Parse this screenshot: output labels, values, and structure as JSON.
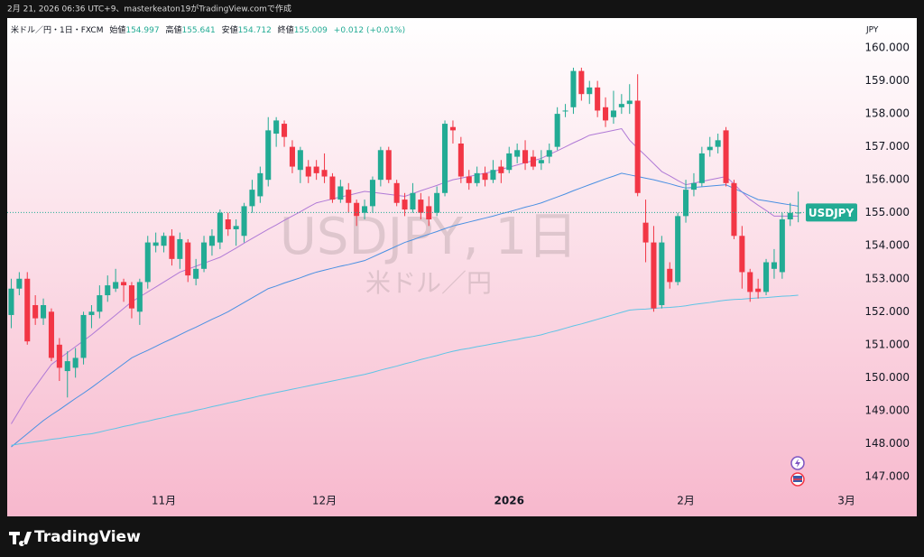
{
  "caption": "2月 21, 2026 06:36 UTC+9、masterkeaton19がTradingView.comで作成",
  "brand": "TradingView",
  "chart_data": {
    "type": "candlestick",
    "title": "米ドル／円・1日・FXCM",
    "legend_labels": {
      "open": "始値",
      "high": "高値",
      "low": "安値",
      "close": "終値"
    },
    "change": "+0.012 (+0.01%)",
    "watermark": "USDJPY, 1日",
    "watermark_subtitle": "米ドル／円",
    "price_tag": "USDJPY",
    "currency": "JPY",
    "up_color": "#22ab94",
    "down_color": "#f23645",
    "last_price_line": true,
    "categories": [
      null,
      null,
      null,
      null,
      null,
      null,
      null,
      null,
      null,
      null,
      null,
      null,
      null,
      null,
      null,
      null,
      null,
      null,
      null,
      "11月",
      null,
      null,
      null,
      null,
      null,
      null,
      null,
      null,
      null,
      null,
      null,
      null,
      null,
      null,
      null,
      null,
      null,
      null,
      null,
      "12月",
      null,
      null,
      null,
      null,
      null,
      null,
      null,
      null,
      null,
      null,
      null,
      null,
      null,
      null,
      null,
      null,
      null,
      null,
      null,
      null,
      null,
      null,
      "2026",
      null,
      null,
      null,
      null,
      null,
      null,
      null,
      null,
      null,
      null,
      null,
      null,
      null,
      null,
      null,
      null,
      null,
      null,
      null,
      null,
      null,
      "2月",
      null,
      null,
      null,
      null,
      null,
      null,
      null,
      null,
      null,
      null,
      null,
      null,
      null,
      null,
      null,
      null,
      null,
      null,
      null,
      "3月"
    ],
    "open": [
      151.9,
      152.7,
      153.0,
      152.2,
      151.8,
      152.0,
      151.0,
      150.2,
      150.3,
      150.6,
      151.9,
      152.0,
      152.5,
      152.7,
      152.9,
      152.8,
      152.0,
      152.9,
      154.0,
      154.0,
      154.3,
      153.6,
      154.1,
      153.0,
      153.3,
      154.0,
      154.1,
      154.8,
      154.5,
      154.3,
      155.2,
      155.5,
      156.0,
      157.4,
      157.7,
      157.0,
      156.3,
      156.4,
      156.4,
      156.3,
      156.1,
      155.4,
      155.7,
      155.3,
      155.0,
      155.2,
      156.0,
      156.9,
      155.9,
      155.4,
      155.1,
      155.4,
      155.2,
      155.0,
      155.6,
      157.6,
      157.1,
      156.1,
      155.9,
      156.2,
      156.0,
      156.4,
      156.3,
      156.7,
      156.9,
      156.7,
      156.5,
      156.7,
      157.0,
      158.1,
      158.2,
      159.3,
      158.6,
      158.8,
      158.2,
      157.9,
      158.2,
      158.3,
      158.4,
      154.7,
      154.1,
      152.2,
      153.3,
      152.9,
      154.9,
      155.7,
      155.9,
      156.9,
      157.0,
      157.5,
      155.9,
      154.3,
      153.2,
      152.7,
      152.6,
      153.3,
      153.2,
      154.8,
      154.997,
      null,
      null,
      null,
      null,
      null,
      null
    ],
    "high": [
      153.0,
      153.2,
      153.2,
      152.5,
      152.4,
      152.1,
      151.2,
      150.8,
      150.9,
      152.0,
      152.2,
      152.8,
      153.1,
      153.3,
      153.0,
      152.9,
      153.0,
      154.3,
      154.4,
      154.4,
      154.5,
      154.4,
      154.2,
      153.6,
      154.3,
      154.5,
      155.1,
      155.0,
      154.8,
      155.3,
      156.0,
      156.4,
      157.9,
      157.9,
      157.8,
      157.2,
      157.0,
      156.6,
      156.6,
      156.8,
      156.2,
      156.0,
      155.9,
      155.4,
      155.4,
      156.1,
      157.0,
      157.0,
      156.0,
      155.6,
      155.9,
      155.6,
      155.5,
      155.8,
      157.8,
      157.8,
      157.3,
      156.3,
      156.4,
      156.4,
      156.6,
      156.6,
      157.0,
      157.1,
      157.2,
      156.9,
      156.9,
      157.1,
      158.2,
      158.3,
      159.4,
      159.4,
      159.0,
      159.0,
      158.5,
      158.7,
      158.6,
      158.9,
      159.2,
      155.4,
      154.6,
      154.3,
      153.5,
      155.0,
      156.0,
      156.2,
      157.0,
      157.3,
      157.4,
      157.6,
      156.0,
      154.6,
      153.3,
      153.0,
      153.6,
      153.9,
      155.0,
      155.3,
      155.641,
      null,
      null,
      null,
      null,
      null,
      null
    ],
    "low": [
      151.5,
      152.5,
      151.0,
      151.6,
      151.6,
      150.5,
      149.9,
      149.4,
      150.0,
      150.4,
      151.5,
      151.8,
      152.3,
      152.6,
      152.3,
      151.8,
      151.6,
      152.7,
      153.8,
      153.8,
      153.4,
      153.3,
      152.9,
      152.8,
      153.2,
      153.7,
      153.9,
      154.3,
      154.0,
      154.1,
      155.0,
      155.3,
      155.8,
      157.0,
      157.0,
      156.2,
      155.9,
      155.9,
      156.0,
      155.9,
      155.3,
      155.3,
      155.0,
      154.6,
      154.8,
      155.0,
      155.8,
      155.9,
      155.2,
      154.9,
      155.0,
      154.8,
      154.6,
      154.9,
      155.5,
      157.1,
      155.9,
      155.7,
      155.8,
      155.8,
      155.9,
      155.9,
      156.2,
      156.5,
      156.3,
      156.3,
      156.3,
      156.5,
      156.9,
      157.9,
      158.0,
      158.4,
      158.3,
      157.9,
      157.6,
      157.7,
      158.0,
      158.0,
      155.5,
      153.5,
      152.0,
      152.1,
      152.7,
      152.8,
      154.7,
      155.5,
      155.8,
      156.7,
      156.8,
      155.8,
      154.2,
      152.7,
      152.3,
      152.4,
      152.5,
      153.0,
      153.0,
      154.6,
      154.712,
      null,
      null,
      null,
      null,
      null,
      null
    ],
    "close": [
      152.7,
      153.0,
      151.1,
      151.8,
      152.2,
      150.6,
      150.3,
      150.5,
      150.6,
      151.9,
      152.0,
      152.5,
      152.8,
      152.9,
      152.8,
      152.1,
      152.9,
      154.1,
      154.1,
      154.3,
      153.6,
      154.2,
      153.1,
      153.3,
      154.1,
      154.3,
      155.0,
      154.5,
      154.6,
      155.2,
      155.7,
      156.2,
      157.5,
      157.8,
      157.3,
      156.4,
      156.9,
      156.1,
      156.2,
      156.1,
      155.4,
      155.8,
      155.3,
      154.9,
      155.2,
      156.0,
      156.9,
      156.0,
      155.3,
      155.1,
      155.6,
      155.0,
      154.8,
      155.6,
      157.7,
      157.5,
      156.1,
      155.9,
      156.2,
      156.0,
      156.3,
      156.2,
      156.8,
      156.9,
      156.5,
      156.4,
      156.6,
      156.9,
      158.0,
      158.1,
      159.3,
      158.6,
      158.8,
      158.1,
      157.8,
      158.1,
      158.3,
      158.4,
      155.6,
      154.1,
      152.1,
      154.1,
      152.9,
      154.9,
      155.7,
      155.9,
      156.8,
      157.0,
      157.2,
      155.9,
      154.3,
      153.2,
      152.6,
      152.6,
      153.5,
      153.5,
      154.8,
      155.0,
      155.009,
      null,
      null,
      null,
      null,
      null,
      null
    ],
    "lines": [
      {
        "color": "#b07ad6",
        "values": [
          148.6,
          149.0,
          149.4,
          149.73,
          150.07,
          150.4,
          150.58,
          150.76,
          150.94,
          151.12,
          151.3,
          151.5,
          151.7,
          151.9,
          152.1,
          152.3,
          152.45,
          152.6,
          152.75,
          152.9,
          153.05,
          153.2,
          153.29,
          153.38,
          153.47,
          153.56,
          153.65,
          153.79,
          153.93,
          154.08,
          154.22,
          154.36,
          154.5,
          154.63,
          154.77,
          154.9,
          155.03,
          155.17,
          155.3,
          155.36,
          155.42,
          155.48,
          155.53,
          155.59,
          155.65,
          155.62,
          155.59,
          155.56,
          155.53,
          155.5,
          155.58,
          155.67,
          155.75,
          155.83,
          155.92,
          156.0,
          156.05,
          156.1,
          156.15,
          156.2,
          156.25,
          156.32,
          156.38,
          156.45,
          156.52,
          156.58,
          156.65,
          156.77,
          156.88,
          157.0,
          157.12,
          157.23,
          157.35,
          157.4,
          157.45,
          157.5,
          157.55,
          157.2,
          156.96,
          156.73,
          156.49,
          156.25,
          156.12,
          155.98,
          155.85,
          155.9,
          155.95,
          156.0,
          156.05,
          156.1,
          155.87,
          155.63,
          155.4,
          155.23,
          155.07,
          154.9,
          154.9,
          154.9,
          154.9,
          null,
          null,
          null,
          null,
          null,
          null
        ]
      },
      {
        "color": "#4a90e2",
        "values": [
          147.9,
          148.1,
          148.3,
          148.5,
          148.7,
          148.87,
          149.03,
          149.2,
          149.37,
          149.53,
          149.7,
          149.88,
          150.06,
          150.24,
          150.42,
          150.6,
          150.72,
          150.83,
          150.95,
          151.07,
          151.18,
          151.3,
          151.42,
          151.53,
          151.65,
          151.77,
          151.88,
          152.0,
          152.14,
          152.28,
          152.42,
          152.56,
          152.7,
          152.78,
          152.87,
          152.95,
          153.03,
          153.12,
          153.2,
          153.26,
          153.32,
          153.38,
          153.43,
          153.49,
          153.55,
          153.66,
          153.77,
          153.88,
          153.99,
          154.1,
          154.18,
          154.27,
          154.35,
          154.43,
          154.52,
          154.6,
          154.66,
          154.72,
          154.78,
          154.84,
          154.9,
          154.97,
          155.03,
          155.1,
          155.17,
          155.23,
          155.3,
          155.39,
          155.48,
          155.57,
          155.67,
          155.76,
          155.85,
          155.94,
          156.03,
          156.11,
          156.2,
          156.15,
          156.1,
          156.05,
          156.0,
          155.94,
          155.88,
          155.81,
          155.75,
          155.77,
          155.79,
          155.81,
          155.83,
          155.85,
          155.74,
          155.63,
          155.51,
          155.4,
          155.36,
          155.32,
          155.28,
          155.24,
          155.2,
          null,
          null,
          null,
          null,
          null,
          null
        ]
      },
      {
        "color": "#5ec4e6",
        "values": [
          147.95,
          147.99,
          148.02,
          148.06,
          148.09,
          148.13,
          148.16,
          148.2,
          148.23,
          148.27,
          148.3,
          148.35,
          148.41,
          148.46,
          148.52,
          148.57,
          148.63,
          148.68,
          148.74,
          148.79,
          148.85,
          148.9,
          148.95,
          149.01,
          149.06,
          149.12,
          149.17,
          149.23,
          149.28,
          149.34,
          149.39,
          149.45,
          149.5,
          149.55,
          149.6,
          149.65,
          149.7,
          149.75,
          149.8,
          149.85,
          149.9,
          149.95,
          150.0,
          150.05,
          150.1,
          150.16,
          150.23,
          150.29,
          150.35,
          150.42,
          150.48,
          150.55,
          150.61,
          150.67,
          150.74,
          150.8,
          150.85,
          150.89,
          150.94,
          150.98,
          151.03,
          151.07,
          151.12,
          151.16,
          151.21,
          151.25,
          151.3,
          151.37,
          151.43,
          151.5,
          151.57,
          151.63,
          151.7,
          151.77,
          151.84,
          151.91,
          151.98,
          152.05,
          152.07,
          152.08,
          152.1,
          152.12,
          152.13,
          152.15,
          152.18,
          152.22,
          152.25,
          152.28,
          152.32,
          152.35,
          152.37,
          152.38,
          152.4,
          152.42,
          152.43,
          152.45,
          152.47,
          152.48,
          152.5,
          null,
          null,
          null,
          null,
          null,
          null
        ]
      }
    ],
    "ylim": [
      146.67,
      160.85
    ],
    "yticks": [
      {
        "value": 147,
        "label": "147.000"
      },
      {
        "value": 148,
        "label": "148.000"
      },
      {
        "value": 149,
        "label": "149.000"
      },
      {
        "value": 150,
        "label": "150.000"
      },
      {
        "value": 151,
        "label": "151.000"
      },
      {
        "value": 152,
        "label": "152.000"
      },
      {
        "value": 153,
        "label": "153.000"
      },
      {
        "value": 154,
        "label": "154.000"
      },
      {
        "value": 155,
        "label": "155.000"
      },
      {
        "value": 156,
        "label": "156.000"
      },
      {
        "value": 157,
        "label": "157.000"
      },
      {
        "value": 158,
        "label": "158.000"
      },
      {
        "value": 159,
        "label": "159.000"
      },
      {
        "value": 160,
        "label": "160.000"
      }
    ]
  }
}
